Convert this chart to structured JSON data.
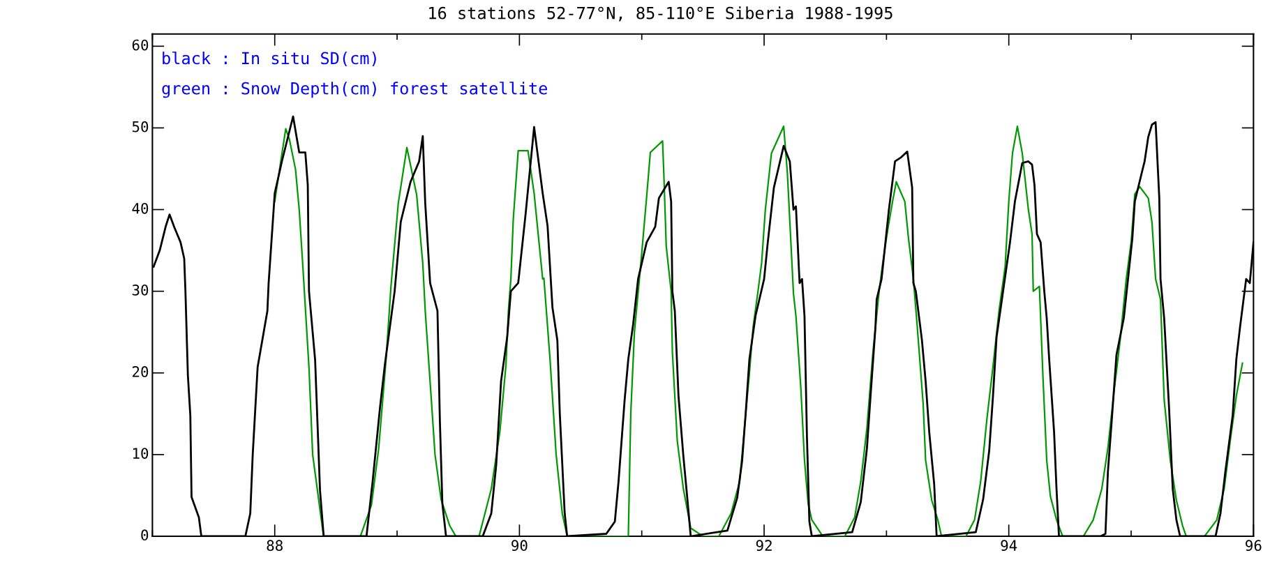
{
  "chart_data": {
    "type": "line",
    "title": "16 stations 52-77°N, 85-110°E Siberia 1988-1995",
    "annotations": [
      "black : In situ SD(cm)",
      "green : Snow Depth(cm) forest satellite"
    ],
    "xlim": [
      87,
      96
    ],
    "xticks": [
      88,
      90,
      92,
      94,
      96
    ],
    "ylim": [
      0,
      61.5
    ],
    "yticks": [
      0,
      10,
      20,
      30,
      40,
      50,
      60
    ],
    "marker": "none",
    "line_style": "solid",
    "series": [
      {
        "color": "#000000",
        "x": [
          87.01,
          87.06,
          87.11,
          87.14,
          87.18,
          87.23,
          87.26,
          87.27,
          87.29,
          87.31,
          87.32,
          87.38,
          87.4,
          87.76,
          87.8,
          87.82,
          87.86,
          87.94,
          87.95,
          88.0,
          88.06,
          88.15,
          88.2,
          88.25,
          88.27,
          88.28,
          88.33,
          88.37,
          88.4,
          88.75,
          88.8,
          88.86,
          88.9,
          88.98,
          89.03,
          89.11,
          89.18,
          89.21,
          89.23,
          89.27,
          89.33,
          89.35,
          89.37,
          89.4,
          89.7,
          89.77,
          89.81,
          89.85,
          89.9,
          89.93,
          89.99,
          90.05,
          90.12,
          90.19,
          90.23,
          90.27,
          90.31,
          90.33,
          90.37,
          90.39,
          90.71,
          90.78,
          90.81,
          90.86,
          90.89,
          90.93,
          90.97,
          91.04,
          91.11,
          91.14,
          91.2,
          91.22,
          91.24,
          91.25,
          91.27,
          91.3,
          91.34,
          91.37,
          91.4,
          91.7,
          91.78,
          91.82,
          91.85,
          91.88,
          91.93,
          92.0,
          92.03,
          92.08,
          92.16,
          92.21,
          92.24,
          92.26,
          92.29,
          92.31,
          92.33,
          92.35,
          92.37,
          92.39,
          92.72,
          92.79,
          92.84,
          92.87,
          92.91,
          92.92,
          92.96,
          93.02,
          93.07,
          93.12,
          93.17,
          93.18,
          93.21,
          93.22,
          93.24,
          93.29,
          93.32,
          93.35,
          93.39,
          93.41,
          93.73,
          93.79,
          93.84,
          93.87,
          93.9,
          93.94,
          94.01,
          94.05,
          94.11,
          94.16,
          94.19,
          94.21,
          94.23,
          94.26,
          94.29,
          94.31,
          94.33,
          94.37,
          94.39,
          94.41,
          94.75,
          94.79,
          94.81,
          94.84,
          94.88,
          94.94,
          95.01,
          95.03,
          95.09,
          95.11,
          95.14,
          95.17,
          95.2,
          95.23,
          95.24,
          95.27,
          95.31,
          95.34,
          95.37,
          95.4,
          95.69,
          95.73,
          95.77,
          95.83,
          95.86,
          95.89,
          95.94,
          95.97,
          96.0
        ],
        "values": [
          33,
          35,
          38,
          39.4,
          37.8,
          36,
          34,
          30,
          19.7,
          14.8,
          4.8,
          2.3,
          0,
          0,
          2.8,
          10,
          20.7,
          27.6,
          31,
          42,
          46,
          51.4,
          47,
          47,
          43,
          30,
          21.6,
          5.6,
          0,
          0,
          6.7,
          15.7,
          21,
          30,
          38.5,
          43.4,
          45.9,
          49,
          40.8,
          31,
          27.6,
          14,
          4,
          0,
          0,
          2.8,
          8.7,
          19,
          24.4,
          30,
          31,
          39.4,
          50.1,
          42,
          38,
          28,
          24,
          15,
          2.8,
          0,
          0.3,
          1.8,
          6.7,
          16.7,
          21.7,
          26,
          31.5,
          36,
          37.9,
          41.4,
          42.9,
          43.4,
          41,
          30,
          27.6,
          17.2,
          9.8,
          5,
          0,
          0.7,
          4.7,
          9.2,
          15.2,
          21.7,
          27,
          31.5,
          36,
          42.7,
          47.8,
          45.9,
          40,
          40.4,
          31,
          31.5,
          27,
          12.2,
          1.8,
          0,
          0.5,
          4.2,
          10.7,
          17.2,
          25.6,
          29,
          31.5,
          40,
          45.9,
          46.4,
          47.1,
          46,
          42.7,
          31,
          30,
          24,
          19,
          12.7,
          6.4,
          0,
          0.5,
          4.5,
          10.5,
          17,
          24.4,
          28.6,
          36,
          41,
          45.7,
          45.9,
          45.5,
          43,
          37,
          36,
          30,
          26.7,
          21.7,
          12.8,
          5.8,
          0,
          0,
          0.3,
          7.9,
          13.9,
          22.2,
          26.7,
          36.5,
          41,
          44.7,
          45.9,
          48.9,
          50.4,
          50.7,
          41.4,
          31.5,
          26.7,
          15.7,
          5.8,
          2,
          0,
          0,
          2.8,
          7.9,
          14.8,
          21.7,
          25.6,
          31.5,
          31,
          36
        ]
      },
      {
        "color": "#009900",
        "x": [
          88.0,
          88.04,
          88.09,
          88.12,
          88.17,
          88.2,
          88.23,
          88.28,
          88.31,
          88.39,
          88.4,
          88.7,
          88.79,
          88.85,
          88.91,
          88.95,
          89.01,
          89.08,
          89.16,
          89.21,
          89.23,
          89.28,
          89.31,
          89.36,
          89.43,
          89.48,
          89.67,
          89.77,
          89.84,
          89.89,
          89.91,
          89.93,
          89.95,
          89.99,
          90.07,
          90.12,
          90.19,
          90.2,
          90.25,
          90.3,
          90.35,
          90.39,
          90.89,
          90.91,
          90.94,
          90.99,
          91.04,
          91.07,
          91.17,
          91.18,
          91.2,
          91.24,
          91.25,
          91.29,
          91.34,
          91.4,
          91.5,
          91.63,
          91.73,
          91.8,
          91.83,
          91.88,
          91.91,
          91.95,
          91.98,
          92.01,
          92.06,
          92.16,
          92.19,
          92.21,
          92.24,
          92.26,
          92.3,
          92.33,
          92.36,
          92.39,
          92.48,
          92.66,
          92.74,
          92.79,
          92.84,
          92.89,
          92.94,
          92.97,
          93.01,
          93.05,
          93.08,
          93.15,
          93.18,
          93.22,
          93.25,
          93.3,
          93.32,
          93.37,
          93.42,
          93.45,
          93.65,
          93.72,
          93.77,
          93.82,
          93.87,
          93.92,
          93.97,
          94.0,
          94.03,
          94.07,
          94.11,
          94.16,
          94.19,
          94.2,
          94.25,
          94.28,
          94.31,
          94.34,
          94.39,
          94.44,
          94.61,
          94.69,
          94.76,
          94.81,
          94.86,
          94.91,
          94.96,
          95.0,
          95.03,
          95.07,
          95.14,
          95.17,
          95.2,
          95.24,
          95.27,
          95.32,
          95.37,
          95.42,
          95.45,
          95.6,
          95.7,
          95.76,
          95.81,
          95.86,
          95.91
        ],
        "values": [
          41,
          45,
          49.9,
          48.6,
          44.9,
          40,
          33,
          20.6,
          10,
          1,
          0,
          0,
          3.8,
          10.8,
          21.7,
          30.6,
          40.8,
          47.6,
          41.8,
          33.4,
          27.6,
          16.7,
          10,
          4.5,
          1.3,
          0,
          0,
          5.8,
          12.8,
          21,
          27.6,
          31.5,
          38.9,
          47.2,
          47.2,
          42,
          31.5,
          31.6,
          21.7,
          10,
          2.8,
          0,
          0,
          15,
          25,
          33,
          41.6,
          47,
          48.4,
          44.5,
          35.5,
          30,
          22.6,
          11.7,
          5.8,
          1,
          0,
          0,
          2.8,
          6.7,
          11.7,
          20,
          25.6,
          30,
          33.5,
          40,
          46.9,
          50.2,
          44.5,
          38.6,
          29.7,
          27,
          18.2,
          9.3,
          4,
          2,
          0,
          0,
          2.3,
          6.7,
          13.2,
          22.6,
          30,
          33.5,
          37.5,
          41,
          43.4,
          41,
          36.5,
          31.5,
          26,
          16.2,
          9.3,
          4.4,
          2,
          0,
          0,
          2,
          6.7,
          14.2,
          20.7,
          27.6,
          33,
          41,
          46.9,
          50.2,
          46.9,
          40,
          37,
          30,
          30.6,
          19.2,
          9.3,
          4.9,
          2,
          0,
          0,
          2,
          5.8,
          10.8,
          17.7,
          24,
          31.5,
          36,
          41.9,
          42.8,
          41.4,
          38.5,
          31.5,
          29,
          16.7,
          9.3,
          4.4,
          1.3,
          0,
          0,
          2,
          5.8,
          11.7,
          17.2,
          21.2
        ]
      }
    ]
  }
}
